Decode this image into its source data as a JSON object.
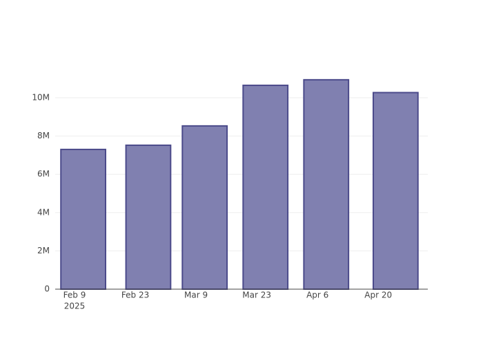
{
  "chart_data": {
    "type": "bar",
    "x": [
      "2025-02-11",
      "2025-02-26",
      "2025-03-11",
      "2025-03-25",
      "2025-04-08",
      "2025-04-24"
    ],
    "values": [
      7300000,
      7520000,
      8530000,
      10650000,
      10940000,
      10270000
    ],
    "color": "#8080b0",
    "edge_color": "#4b4a8a",
    "xlim": [
      "2025-02-04T13:00:00Z",
      "2025-05-01T10:00:00Z"
    ],
    "xticks": [
      {
        "value": "2025-02-09",
        "label": "Feb 9"
      },
      {
        "value": "2025-02-23",
        "label": "Feb 23"
      },
      {
        "value": "2025-03-09",
        "label": "Mar 9"
      },
      {
        "value": "2025-03-23",
        "label": "Mar 23"
      },
      {
        "value": "2025-04-06",
        "label": "Apr 6"
      },
      {
        "value": "2025-04-20",
        "label": "Apr 20"
      }
    ],
    "xtick_year": "2025",
    "ylim": [
      0,
      11510000
    ],
    "yticks": [
      0,
      {
        "value": 2000000,
        "label": "2M"
      },
      {
        "value": 4000000,
        "label": "4M"
      },
      {
        "value": 6000000,
        "label": "6M"
      },
      {
        "value": 8000000,
        "label": "8M"
      },
      {
        "value": 10000000,
        "label": "10M"
      }
    ],
    "grid": true
  }
}
